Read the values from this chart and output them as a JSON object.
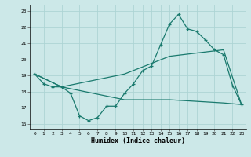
{
  "xlabel": "Humidex (Indice chaleur)",
  "xlim": [
    -0.5,
    23.5
  ],
  "ylim": [
    15.7,
    23.4
  ],
  "yticks": [
    16,
    17,
    18,
    19,
    20,
    21,
    22,
    23
  ],
  "xticks": [
    0,
    1,
    2,
    3,
    4,
    5,
    6,
    7,
    8,
    9,
    10,
    11,
    12,
    13,
    14,
    15,
    16,
    17,
    18,
    19,
    20,
    21,
    22,
    23
  ],
  "color": "#1a7a6e",
  "bg_color": "#cce8e8",
  "grid_color": "#add4d4",
  "line1_x": [
    0,
    1,
    2,
    3,
    4,
    5,
    6,
    7,
    8,
    9,
    10,
    11,
    12,
    13,
    14,
    15,
    16,
    17,
    18,
    19,
    20,
    21,
    22,
    23
  ],
  "line1_y": [
    19.1,
    18.5,
    18.3,
    18.3,
    17.9,
    16.5,
    16.2,
    16.4,
    17.1,
    17.1,
    17.9,
    18.5,
    19.3,
    19.6,
    20.9,
    22.2,
    22.8,
    21.9,
    21.75,
    21.2,
    20.6,
    20.3,
    18.4,
    17.2
  ],
  "line2_x": [
    0,
    3,
    10,
    15,
    21,
    23
  ],
  "line2_y": [
    19.1,
    18.3,
    19.1,
    20.2,
    20.6,
    17.2
  ],
  "line3_x": [
    0,
    3,
    10,
    15,
    21,
    23
  ],
  "line3_y": [
    19.1,
    18.3,
    17.5,
    17.5,
    17.3,
    17.2
  ]
}
